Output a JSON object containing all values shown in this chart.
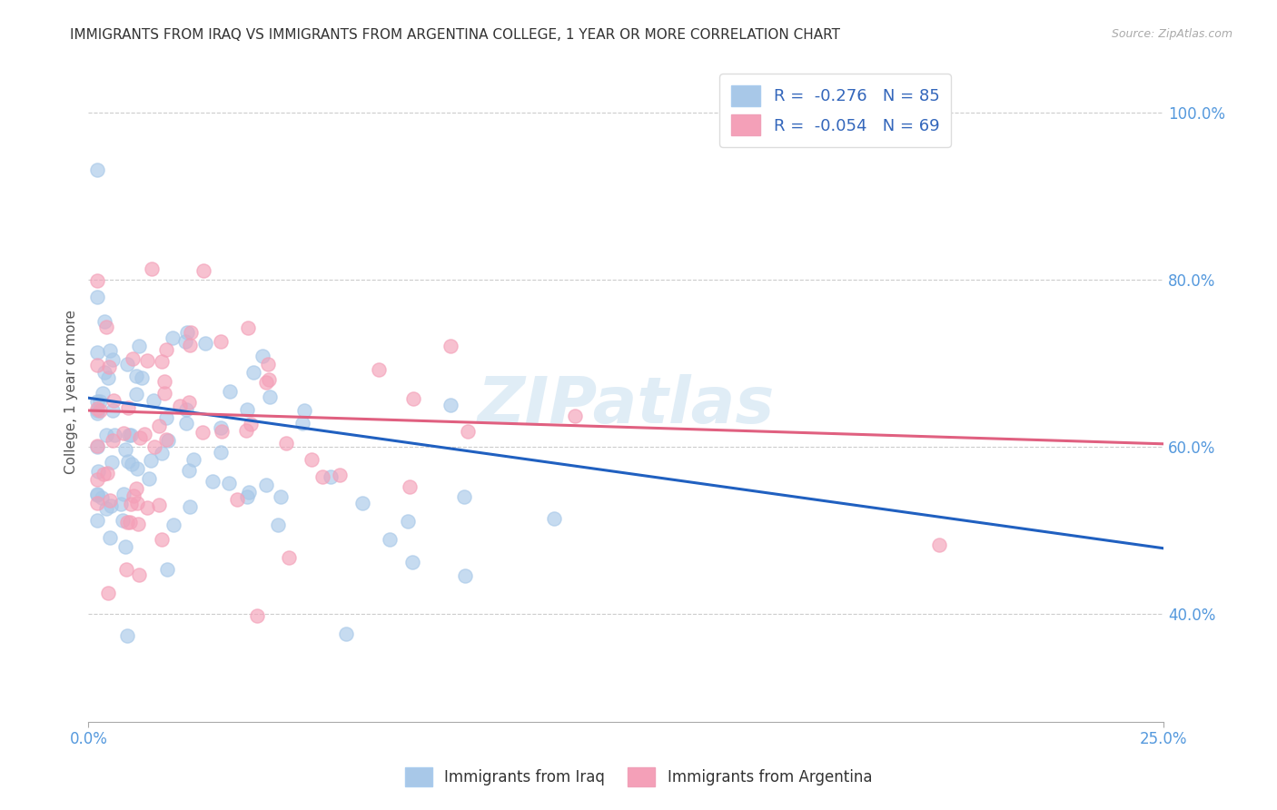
{
  "title": "IMMIGRANTS FROM IRAQ VS IMMIGRANTS FROM ARGENTINA COLLEGE, 1 YEAR OR MORE CORRELATION CHART",
  "source": "Source: ZipAtlas.com",
  "ylabel": "College, 1 year or more",
  "xmin": 0.0,
  "xmax": 0.25,
  "ymin": 0.27,
  "ymax": 1.06,
  "iraq_color": "#a8c8e8",
  "argentina_color": "#f4a0b8",
  "trendline_iraq_color": "#2060c0",
  "trendline_argentina_color": "#e06080",
  "background": "#ffffff",
  "grid_color": "#cccccc",
  "watermark": "ZIPatlas",
  "iraq_r": -0.276,
  "iraq_n": 85,
  "argentina_r": -0.054,
  "argentina_n": 69,
  "iraq_trend_x0": 0.0,
  "iraq_trend_y0": 0.658,
  "iraq_trend_x1": 0.25,
  "iraq_trend_y1": 0.478,
  "arg_trend_x0": 0.0,
  "arg_trend_y0": 0.643,
  "arg_trend_x1": 0.25,
  "arg_trend_y1": 0.603
}
